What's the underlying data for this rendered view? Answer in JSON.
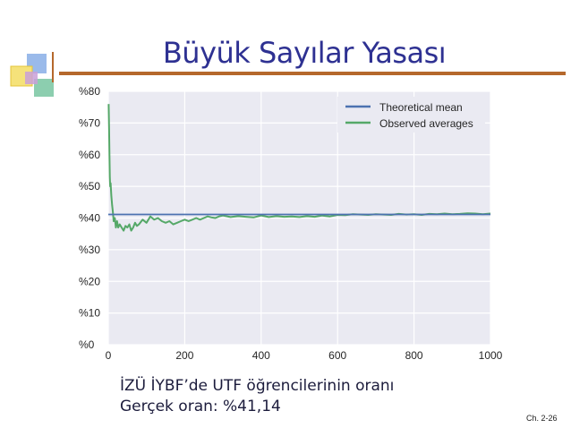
{
  "slide": {
    "title": "Büyük Sayılar Yasası",
    "caption_lines": [
      "İZÜ İYBF’de UTF öğrencilerinin oranı",
      "Gerçek oran: %41,14"
    ],
    "slide_number": "Ch. 2-26"
  },
  "colors": {
    "title": "#2e3192",
    "rule": "#b5682c",
    "plot_background": "#eaeaf2",
    "theoretical": "#4c72b0",
    "observed": "#55a868"
  },
  "chart_data": {
    "type": "line",
    "title": "",
    "xlabel": "",
    "ylabel": "",
    "xlim": [
      0,
      1000
    ],
    "ylim": [
      0,
      0.8
    ],
    "x_ticks": [
      0,
      200,
      400,
      600,
      800,
      1000
    ],
    "x_tick_labels": [
      "0",
      "200",
      "400",
      "600",
      "800",
      "1000"
    ],
    "y_ticks": [
      0,
      0.1,
      0.2,
      0.3,
      0.4,
      0.5,
      0.6,
      0.7,
      0.8
    ],
    "y_tick_labels": [
      "%0",
      "%10",
      "%20",
      "%30",
      "%40",
      "%50",
      "%60",
      "%70",
      "%80"
    ],
    "grid": true,
    "legend": "top-right",
    "series": [
      {
        "name": "Theoretical mean",
        "x": [
          0,
          1000
        ],
        "y": [
          0.4114,
          0.4114
        ]
      },
      {
        "name": "Observed averages",
        "x": [
          1,
          2,
          3,
          4,
          5,
          6,
          8,
          10,
          12,
          14,
          17,
          20,
          23,
          26,
          30,
          35,
          40,
          45,
          50,
          55,
          60,
          65,
          70,
          75,
          80,
          90,
          100,
          110,
          120,
          130,
          140,
          150,
          160,
          170,
          180,
          190,
          200,
          210,
          220,
          230,
          240,
          250,
          260,
          270,
          280,
          290,
          300,
          320,
          340,
          360,
          380,
          400,
          420,
          440,
          460,
          480,
          500,
          520,
          540,
          560,
          580,
          600,
          620,
          640,
          660,
          680,
          700,
          720,
          740,
          760,
          780,
          800,
          820,
          840,
          860,
          880,
          900,
          920,
          940,
          960,
          980,
          1000
        ],
        "y": [
          0.76,
          0.68,
          0.6,
          0.53,
          0.5,
          0.51,
          0.47,
          0.44,
          0.42,
          0.39,
          0.4,
          0.37,
          0.39,
          0.37,
          0.38,
          0.37,
          0.36,
          0.375,
          0.37,
          0.38,
          0.36,
          0.37,
          0.385,
          0.375,
          0.38,
          0.395,
          0.385,
          0.405,
          0.395,
          0.4,
          0.39,
          0.385,
          0.39,
          0.38,
          0.385,
          0.39,
          0.395,
          0.39,
          0.395,
          0.4,
          0.395,
          0.4,
          0.405,
          0.402,
          0.4,
          0.405,
          0.408,
          0.403,
          0.406,
          0.404,
          0.402,
          0.408,
          0.403,
          0.406,
          0.404,
          0.405,
          0.403,
          0.406,
          0.404,
          0.408,
          0.405,
          0.41,
          0.409,
          0.412,
          0.411,
          0.41,
          0.412,
          0.411,
          0.41,
          0.413,
          0.411,
          0.412,
          0.41,
          0.413,
          0.412,
          0.414,
          0.412,
          0.413,
          0.415,
          0.414,
          0.412,
          0.414
        ]
      }
    ]
  }
}
